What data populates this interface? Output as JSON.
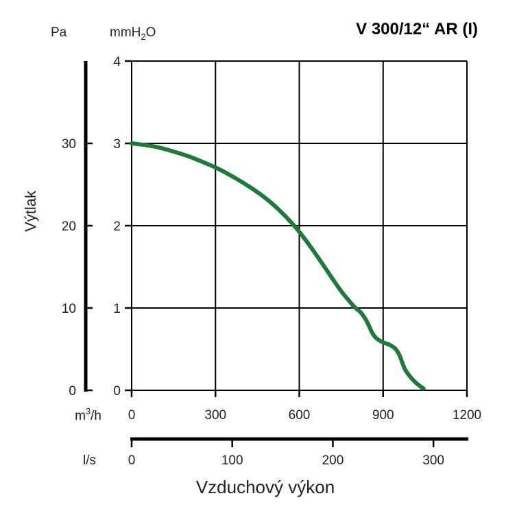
{
  "chart_data": {
    "type": "line",
    "title": "V 300/12“ AR (I)",
    "ylabel": "Výtlak",
    "xlabel": "Vzduchový výkon",
    "colors": {
      "curve": "#1e7a3a"
    },
    "grid": true,
    "y_axis_mm": {
      "unit_label": "mmH",
      "unit_sub": "2",
      "unit_tail": "O",
      "lim": [
        0,
        4
      ],
      "ticks": [
        0,
        1,
        2,
        3,
        4
      ],
      "tick_labels": [
        "0",
        "1",
        "2",
        "3",
        "4"
      ]
    },
    "y_axis_pa": {
      "unit_label": "Pa",
      "lim": [
        0,
        40
      ],
      "ticks": [
        0,
        10,
        20,
        30
      ],
      "tick_labels": [
        "0",
        "10",
        "20",
        "30"
      ]
    },
    "x_axis_m3h": {
      "unit_label": "m",
      "unit_sup": "3",
      "unit_tail": "/h",
      "lim": [
        0,
        1200
      ],
      "ticks": [
        0,
        300,
        600,
        900,
        1200
      ],
      "tick_labels": [
        "0",
        "300",
        "600",
        "900",
        "1200"
      ]
    },
    "x_axis_ls": {
      "unit_label": "l/s",
      "lim": [
        0,
        333.3
      ],
      "ticks": [
        0,
        100,
        200,
        300
      ],
      "tick_labels": [
        "0",
        "100",
        "200",
        "300"
      ]
    },
    "series": [
      {
        "x": [
          0,
          50,
          100,
          150,
          200,
          250,
          300,
          350,
          400,
          450,
          500,
          550,
          600,
          650,
          700,
          750,
          780,
          800,
          820,
          830,
          840,
          850,
          860,
          870,
          880,
          890,
          900,
          920,
          940,
          950,
          960,
          970,
          980,
          1000,
          1020,
          1045
        ],
        "y": [
          3.0,
          2.98,
          2.95,
          2.9,
          2.85,
          2.78,
          2.71,
          2.62,
          2.52,
          2.41,
          2.28,
          2.12,
          1.93,
          1.7,
          1.45,
          1.2,
          1.08,
          1.0,
          0.95,
          0.9,
          0.85,
          0.78,
          0.7,
          0.65,
          0.62,
          0.6,
          0.58,
          0.56,
          0.52,
          0.48,
          0.42,
          0.32,
          0.24,
          0.15,
          0.08,
          0.02
        ]
      }
    ]
  }
}
